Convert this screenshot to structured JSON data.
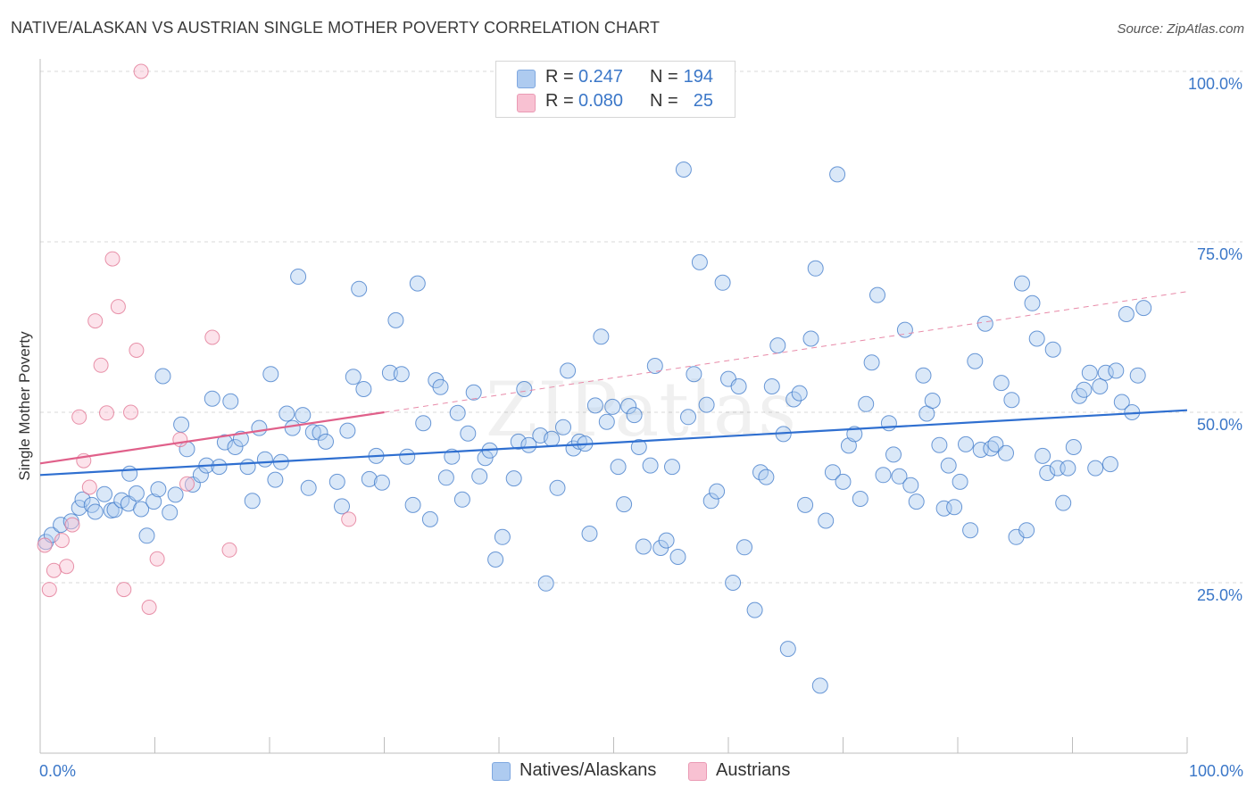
{
  "title": "NATIVE/ALASKAN VS AUSTRIAN SINGLE MOTHER POVERTY CORRELATION CHART",
  "source": "Source: ZipAtlas.com",
  "watermark": "ZIPatlas",
  "legend": {
    "rows": [
      {
        "r_label": "R =",
        "r_value": "0.247",
        "n_label": "N =",
        "n_value": "194",
        "color": "#aecbf0"
      },
      {
        "r_label": "R =",
        "r_value": "0.080",
        "n_label": "N =",
        "n_value": "25",
        "color": "#f8c1d2"
      }
    ]
  },
  "bottom_legend": [
    {
      "label": "Natives/Alaskans",
      "color": "#aecbf0"
    },
    {
      "label": "Austrians",
      "color": "#f8c1d2"
    }
  ],
  "chart_data": {
    "type": "scatter",
    "title": "NATIVE/ALASKAN VS AUSTRIAN SINGLE MOTHER POVERTY CORRELATION CHART",
    "xlabel": "",
    "ylabel": "Single Mother Poverty",
    "xlim": [
      0,
      100
    ],
    "ylim": [
      0,
      100
    ],
    "x_tick_labels": [
      "0.0%",
      "100.0%"
    ],
    "y_tick_values": [
      25,
      50,
      75,
      100
    ],
    "y_tick_labels": [
      "25.0%",
      "50.0%",
      "75.0%",
      "100.0%"
    ],
    "grid": true,
    "legend_position": "top-center",
    "series": [
      {
        "name": "Natives/Alaskans",
        "color": "#3b77c8",
        "fill": "#aecbf0",
        "trend": {
          "x": [
            0,
            100
          ],
          "y": [
            40.8,
            50.3
          ],
          "dashed": false
        },
        "points": [
          [
            0.5,
            31.0
          ],
          [
            1.0,
            32.0
          ],
          [
            1.8,
            33.5
          ],
          [
            2.7,
            34.0
          ],
          [
            3.4,
            36.0
          ],
          [
            3.7,
            37.2
          ],
          [
            4.5,
            36.4
          ],
          [
            4.8,
            35.4
          ],
          [
            5.6,
            38.0
          ],
          [
            6.2,
            35.6
          ],
          [
            6.5,
            35.7
          ],
          [
            7.1,
            37.1
          ],
          [
            7.7,
            36.6
          ],
          [
            7.8,
            41.0
          ],
          [
            8.4,
            38.1
          ],
          [
            8.8,
            35.8
          ],
          [
            9.3,
            31.9
          ],
          [
            9.9,
            36.9
          ],
          [
            10.3,
            38.7
          ],
          [
            10.7,
            55.3
          ],
          [
            11.3,
            35.3
          ],
          [
            11.8,
            37.9
          ],
          [
            12.3,
            48.2
          ],
          [
            12.8,
            44.6
          ],
          [
            13.3,
            39.4
          ],
          [
            14.0,
            40.8
          ],
          [
            14.5,
            42.2
          ],
          [
            15.0,
            52.0
          ],
          [
            15.6,
            42.0
          ],
          [
            16.1,
            45.6
          ],
          [
            16.6,
            51.6
          ],
          [
            17.0,
            44.9
          ],
          [
            17.5,
            46.1
          ],
          [
            18.1,
            42.0
          ],
          [
            18.5,
            37.0
          ],
          [
            19.1,
            47.7
          ],
          [
            19.6,
            43.1
          ],
          [
            20.1,
            55.6
          ],
          [
            20.5,
            40.1
          ],
          [
            21.0,
            42.7
          ],
          [
            21.5,
            49.8
          ],
          [
            22.0,
            47.7
          ],
          [
            22.5,
            69.9
          ],
          [
            22.9,
            49.6
          ],
          [
            23.4,
            38.9
          ],
          [
            23.8,
            47.1
          ],
          [
            24.4,
            47.0
          ],
          [
            24.9,
            45.7
          ],
          [
            25.9,
            39.8
          ],
          [
            26.3,
            36.2
          ],
          [
            26.8,
            47.3
          ],
          [
            27.3,
            55.2
          ],
          [
            27.8,
            68.1
          ],
          [
            28.2,
            53.4
          ],
          [
            28.7,
            40.2
          ],
          [
            29.3,
            43.6
          ],
          [
            29.8,
            39.7
          ],
          [
            30.5,
            55.8
          ],
          [
            31.0,
            63.5
          ],
          [
            31.5,
            55.6
          ],
          [
            32.0,
            43.5
          ],
          [
            32.5,
            36.4
          ],
          [
            32.9,
            68.9
          ],
          [
            33.4,
            48.4
          ],
          [
            34.0,
            34.3
          ],
          [
            34.5,
            54.7
          ],
          [
            34.9,
            53.7
          ],
          [
            35.4,
            40.4
          ],
          [
            35.9,
            43.5
          ],
          [
            36.4,
            49.9
          ],
          [
            36.8,
            37.2
          ],
          [
            37.3,
            46.9
          ],
          [
            37.8,
            52.9
          ],
          [
            38.3,
            40.6
          ],
          [
            38.8,
            43.3
          ],
          [
            39.2,
            44.4
          ],
          [
            39.7,
            28.4
          ],
          [
            40.3,
            31.7
          ],
          [
            41.3,
            40.3
          ],
          [
            41.7,
            45.7
          ],
          [
            42.2,
            53.4
          ],
          [
            42.6,
            45.2
          ],
          [
            43.6,
            46.6
          ],
          [
            44.1,
            24.9
          ],
          [
            44.6,
            46.1
          ],
          [
            45.1,
            38.9
          ],
          [
            45.6,
            47.8
          ],
          [
            46.0,
            56.1
          ],
          [
            46.5,
            44.7
          ],
          [
            47.0,
            45.7
          ],
          [
            47.5,
            45.4
          ],
          [
            47.9,
            32.2
          ],
          [
            48.4,
            51.0
          ],
          [
            48.9,
            61.1
          ],
          [
            49.4,
            48.6
          ],
          [
            49.9,
            50.8
          ],
          [
            50.4,
            42.0
          ],
          [
            50.9,
            36.5
          ],
          [
            51.3,
            50.9
          ],
          [
            51.8,
            49.6
          ],
          [
            52.2,
            44.9
          ],
          [
            52.6,
            30.3
          ],
          [
            53.2,
            42.2
          ],
          [
            53.6,
            56.8
          ],
          [
            54.1,
            30.1
          ],
          [
            54.6,
            31.2
          ],
          [
            55.1,
            42.0
          ],
          [
            55.6,
            28.8
          ],
          [
            56.1,
            85.6
          ],
          [
            56.5,
            49.3
          ],
          [
            57.0,
            55.6
          ],
          [
            57.5,
            72.0
          ],
          [
            58.1,
            51.1
          ],
          [
            58.5,
            37.0
          ],
          [
            59.0,
            38.4
          ],
          [
            59.5,
            69.0
          ],
          [
            60.0,
            54.9
          ],
          [
            60.4,
            25.0
          ],
          [
            60.9,
            53.8
          ],
          [
            61.4,
            30.2
          ],
          [
            62.3,
            21.0
          ],
          [
            62.8,
            41.2
          ],
          [
            63.3,
            40.5
          ],
          [
            63.8,
            53.8
          ],
          [
            64.3,
            59.8
          ],
          [
            64.8,
            46.8
          ],
          [
            65.2,
            15.3
          ],
          [
            65.7,
            51.9
          ],
          [
            66.2,
            52.8
          ],
          [
            66.7,
            36.4
          ],
          [
            67.2,
            60.8
          ],
          [
            67.6,
            71.1
          ],
          [
            68.0,
            9.9
          ],
          [
            68.5,
            34.1
          ],
          [
            69.1,
            41.2
          ],
          [
            69.5,
            84.9
          ],
          [
            70.0,
            39.8
          ],
          [
            70.5,
            45.1
          ],
          [
            71.0,
            46.8
          ],
          [
            71.5,
            37.3
          ],
          [
            72.0,
            51.2
          ],
          [
            72.5,
            57.3
          ],
          [
            73.0,
            67.2
          ],
          [
            73.5,
            40.8
          ],
          [
            74.0,
            48.4
          ],
          [
            74.4,
            43.8
          ],
          [
            74.9,
            40.6
          ],
          [
            75.4,
            62.1
          ],
          [
            75.9,
            39.3
          ],
          [
            76.4,
            36.9
          ],
          [
            77.0,
            55.4
          ],
          [
            77.3,
            49.8
          ],
          [
            77.8,
            51.7
          ],
          [
            78.4,
            45.2
          ],
          [
            78.8,
            35.9
          ],
          [
            79.2,
            42.2
          ],
          [
            79.7,
            36.1
          ],
          [
            80.2,
            39.8
          ],
          [
            80.7,
            45.3
          ],
          [
            81.1,
            32.7
          ],
          [
            81.5,
            57.5
          ],
          [
            82.0,
            44.5
          ],
          [
            82.4,
            63.0
          ],
          [
            82.9,
            44.7
          ],
          [
            83.3,
            45.3
          ],
          [
            83.8,
            54.3
          ],
          [
            84.2,
            44.0
          ],
          [
            84.7,
            51.8
          ],
          [
            85.1,
            31.7
          ],
          [
            85.6,
            68.9
          ],
          [
            86.0,
            32.7
          ],
          [
            86.5,
            66.0
          ],
          [
            86.9,
            60.8
          ],
          [
            87.4,
            43.6
          ],
          [
            87.8,
            41.1
          ],
          [
            88.3,
            59.2
          ],
          [
            88.7,
            41.8
          ],
          [
            89.2,
            36.7
          ],
          [
            89.6,
            41.8
          ],
          [
            90.1,
            44.9
          ],
          [
            90.6,
            52.4
          ],
          [
            91.0,
            53.3
          ],
          [
            91.5,
            55.8
          ],
          [
            92.0,
            41.8
          ],
          [
            92.4,
            53.8
          ],
          [
            92.9,
            55.8
          ],
          [
            93.3,
            42.4
          ],
          [
            93.8,
            56.1
          ],
          [
            94.3,
            51.5
          ],
          [
            94.7,
            64.4
          ],
          [
            95.2,
            50.0
          ],
          [
            95.7,
            55.4
          ],
          [
            96.2,
            65.3
          ]
        ]
      },
      {
        "name": "Austrians",
        "color": "#e0708f",
        "fill": "#f8c1d2",
        "trend": {
          "x": [
            0,
            30
          ],
          "y": [
            42.5,
            50.0
          ],
          "dashed_extension": {
            "x": [
              30,
              100
            ],
            "y": [
              50.0,
              67.7
            ]
          }
        },
        "points": [
          [
            0.4,
            30.5
          ],
          [
            0.8,
            24.0
          ],
          [
            1.2,
            26.8
          ],
          [
            1.9,
            31.2
          ],
          [
            2.3,
            27.4
          ],
          [
            2.8,
            33.5
          ],
          [
            3.4,
            49.3
          ],
          [
            3.8,
            42.9
          ],
          [
            4.3,
            39.0
          ],
          [
            4.8,
            63.4
          ],
          [
            5.3,
            56.9
          ],
          [
            5.8,
            49.9
          ],
          [
            6.3,
            72.5
          ],
          [
            6.8,
            65.5
          ],
          [
            7.3,
            24.0
          ],
          [
            7.9,
            50.0
          ],
          [
            8.4,
            59.1
          ],
          [
            8.8,
            100.0
          ],
          [
            9.5,
            21.4
          ],
          [
            10.2,
            28.5
          ],
          [
            12.2,
            46.0
          ],
          [
            12.8,
            39.5
          ],
          [
            15.0,
            61.0
          ],
          [
            16.5,
            29.8
          ],
          [
            26.9,
            34.3
          ]
        ]
      }
    ]
  }
}
